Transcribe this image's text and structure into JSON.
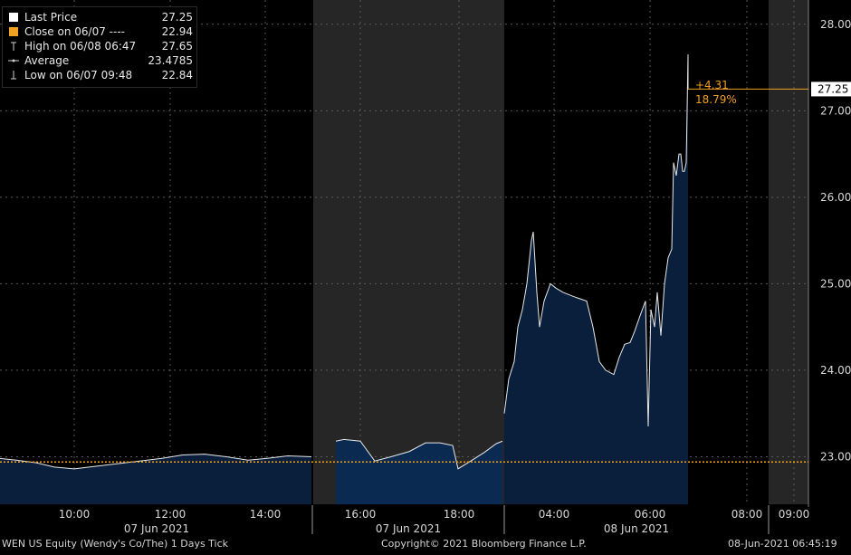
{
  "chart_data": {
    "type": "area",
    "legend": [
      {
        "label": "Last Price",
        "value": "27.25",
        "icon": "white-square"
      },
      {
        "label": "Close on 06/07 ----",
        "value": "22.94",
        "icon": "orange-square"
      },
      {
        "label": "High on 06/08 06:47",
        "value": "27.65",
        "icon": "high-marker"
      },
      {
        "label": "Average",
        "value": "23.4785",
        "icon": "average-marker"
      },
      {
        "label": "Low on 06/07 09:48",
        "value": "22.84",
        "icon": "low-marker"
      }
    ],
    "y_ticks": [
      "28.00",
      "27.00",
      "26.00",
      "25.00",
      "24.00",
      "23.00"
    ],
    "ylim": [
      22.45,
      28.05
    ],
    "current_value_label": "27.25",
    "change_labels": [
      "+4.31",
      "18.79%"
    ],
    "x_ticks": [
      "10:00",
      "12:00",
      "14:00",
      "16:00",
      "18:00",
      "04:00",
      "06:00",
      "08:00",
      "09:00"
    ],
    "date_labels": [
      "07 Jun 2021",
      "07 Jun 2021",
      "08 Jun 2021"
    ],
    "reference_line": 22.94,
    "session_1": [
      [
        0,
        22.98
      ],
      [
        18,
        22.96
      ],
      [
        40,
        22.93
      ],
      [
        60,
        22.88
      ],
      [
        82,
        22.86
      ],
      [
        106,
        22.89
      ],
      [
        130,
        22.92
      ],
      [
        154,
        22.95
      ],
      [
        178,
        22.98
      ],
      [
        202,
        23.02
      ],
      [
        226,
        23.03
      ],
      [
        250,
        23.0
      ],
      [
        274,
        22.96
      ],
      [
        294,
        22.98
      ],
      [
        318,
        23.01
      ],
      [
        344,
        23.0
      ]
    ],
    "session_2": [
      [
        371,
        23.18
      ],
      [
        380,
        23.2
      ],
      [
        398,
        23.18
      ],
      [
        414,
        22.95
      ],
      [
        432,
        23.0
      ],
      [
        452,
        23.06
      ],
      [
        470,
        23.16
      ],
      [
        486,
        23.16
      ],
      [
        500,
        23.13
      ],
      [
        506,
        22.86
      ],
      [
        520,
        22.95
      ],
      [
        535,
        23.05
      ],
      [
        548,
        23.15
      ],
      [
        555,
        23.18
      ]
    ],
    "session_3": [
      [
        557,
        23.5
      ],
      [
        562,
        23.9
      ],
      [
        568,
        24.1
      ],
      [
        572,
        24.5
      ],
      [
        577,
        24.7
      ],
      [
        582,
        25.0
      ],
      [
        587,
        25.5
      ],
      [
        589,
        25.6
      ],
      [
        593,
        24.9
      ],
      [
        596,
        24.5
      ],
      [
        601,
        24.8
      ],
      [
        608,
        25.0
      ],
      [
        614,
        24.95
      ],
      [
        622,
        24.9
      ],
      [
        634,
        24.85
      ],
      [
        648,
        24.8
      ],
      [
        655,
        24.5
      ],
      [
        662,
        24.1
      ],
      [
        669,
        24.0
      ],
      [
        678,
        23.95
      ],
      [
        684,
        24.15
      ],
      [
        690,
        24.3
      ],
      [
        696,
        24.32
      ],
      [
        701,
        24.45
      ],
      [
        707,
        24.63
      ],
      [
        713,
        24.8
      ],
      [
        716,
        23.35
      ],
      [
        719,
        24.7
      ],
      [
        723,
        24.5
      ],
      [
        726,
        24.9
      ],
      [
        730,
        24.4
      ],
      [
        734,
        25.0
      ],
      [
        738,
        25.3
      ],
      [
        742,
        25.4
      ],
      [
        744,
        26.4
      ],
      [
        747,
        26.25
      ],
      [
        750,
        26.5
      ],
      [
        752,
        26.5
      ],
      [
        754,
        26.3
      ],
      [
        756,
        26.3
      ],
      [
        758,
        26.4
      ],
      [
        760,
        27.65
      ],
      [
        760,
        27.25
      ]
    ],
    "x_axis_labels_positions": [
      82,
      188,
      293,
      398,
      507,
      612,
      718,
      825,
      877
    ],
    "date_label_positions": [
      173,
      451,
      703
    ],
    "gray_bands": [
      [
        346,
        557
      ],
      [
        849,
        893
      ]
    ]
  },
  "footer": {
    "left_text": "WEN US Equity (Wendy's Co/The) 1 Days  Tick",
    "center_text": "Copyright© 2021 Bloomberg Finance L.P.",
    "right_text": "08-Jun-2021 06:45:19"
  },
  "colors": {
    "background": "#000000",
    "area_fill": "#0a1f3c",
    "area_fill_session2": "#0b2a52",
    "line": "#e8e8e8",
    "grid": "#5a5a5a",
    "band": "#262626",
    "axis_text": "#d8d8d8",
    "orange": "#f0a11f"
  }
}
